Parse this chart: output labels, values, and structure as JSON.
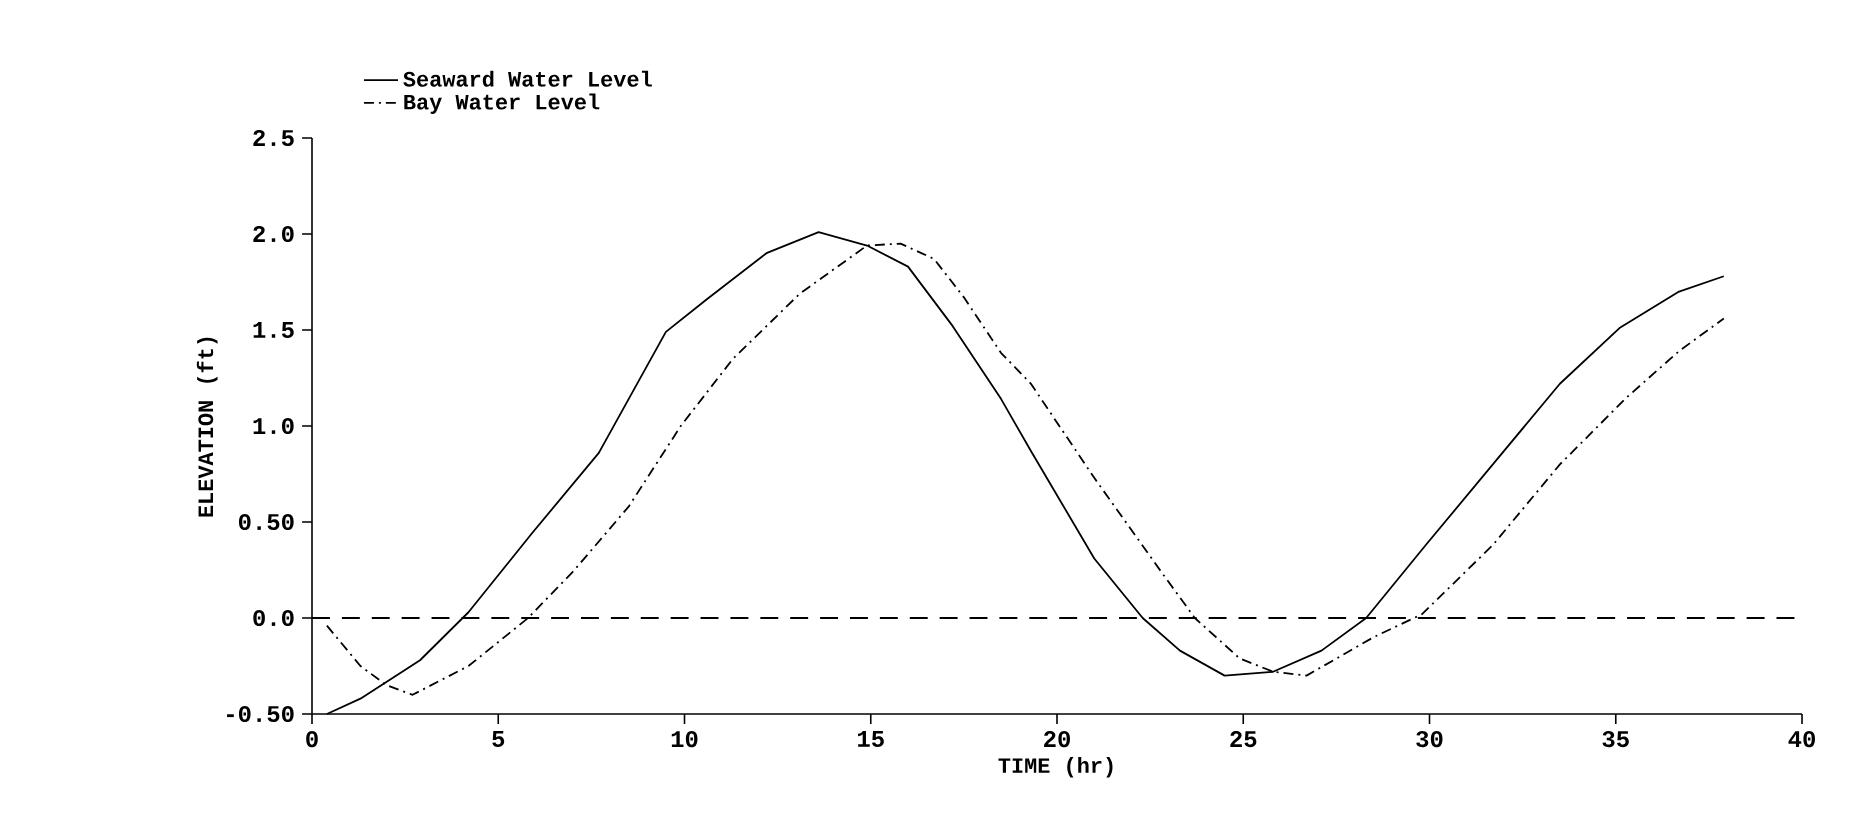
{
  "chart_data": {
    "type": "line",
    "xlabel": "TIME (hr)",
    "ylabel": "ELEVATION (ft)",
    "xlim": [
      0,
      40
    ],
    "ylim": [
      -0.5,
      2.5
    ],
    "xticks": [
      0,
      5,
      10,
      15,
      20,
      25,
      30,
      35,
      40
    ],
    "yticks": [
      {
        "value": -0.5,
        "label": "-0.50"
      },
      {
        "value": 0,
        "label": "0.0"
      },
      {
        "value": 0.5,
        "label": "0.50"
      },
      {
        "value": 1,
        "label": "1.0"
      },
      {
        "value": 1.5,
        "label": "1.5"
      },
      {
        "value": 2,
        "label": "2.0"
      },
      {
        "value": 2.5,
        "label": "2.5"
      }
    ],
    "legend": "top left",
    "grid": false,
    "marker": "none",
    "series": [
      {
        "name": "Seaward Water Level",
        "color": "#000000",
        "line_style": "solid",
        "x": [
          0.4,
          1.3,
          2.9,
          4.2,
          5.9,
          7.7,
          9.5,
          10.6,
          12.2,
          13.6,
          14.9,
          16,
          17.2,
          18.5,
          19.3,
          21.0,
          22.3,
          23.3,
          24.5,
          25.8,
          27.1,
          28.3,
          29.9,
          31.7,
          33.5,
          35.1,
          36.7,
          37.9
        ],
        "values": [
          -0.5,
          -0.42,
          -0.22,
          0.03,
          0.44,
          0.86,
          1.49,
          1.66,
          1.9,
          2.01,
          1.94,
          1.83,
          1.52,
          1.14,
          0.87,
          0.31,
          0,
          -0.17,
          -0.3,
          -0.28,
          -0.17,
          0,
          0.38,
          0.8,
          1.22,
          1.51,
          1.7,
          1.78
        ]
      },
      {
        "name": "Bay Water Level",
        "color": "#000000",
        "line_style": "dashdot",
        "x": [
          0.4,
          1.3,
          2.0,
          2.7,
          4.2,
          5.8,
          7.0,
          8.5,
          9.9,
          11.3,
          13.1,
          14.9,
          15.8,
          16.7,
          17.5,
          18.5,
          19.3,
          21.0,
          22.8,
          23.7,
          24.9,
          25.8,
          26.7,
          28.5,
          29.8,
          31.7,
          33.5,
          35.3,
          36.7,
          37.9
        ],
        "values": [
          -0.04,
          -0.25,
          -0.35,
          -0.4,
          -0.25,
          0,
          0.24,
          0.58,
          1.0,
          1.35,
          1.69,
          1.94,
          1.95,
          1.87,
          1.67,
          1.38,
          1.22,
          0.73,
          0.24,
          0,
          -0.21,
          -0.28,
          -0.3,
          -0.1,
          0.02,
          0.38,
          0.8,
          1.15,
          1.39,
          1.56
        ]
      }
    ],
    "ref_lines": [
      {
        "axis": "y",
        "value": 0,
        "color": "#000000",
        "line_style": "dashed"
      }
    ]
  }
}
